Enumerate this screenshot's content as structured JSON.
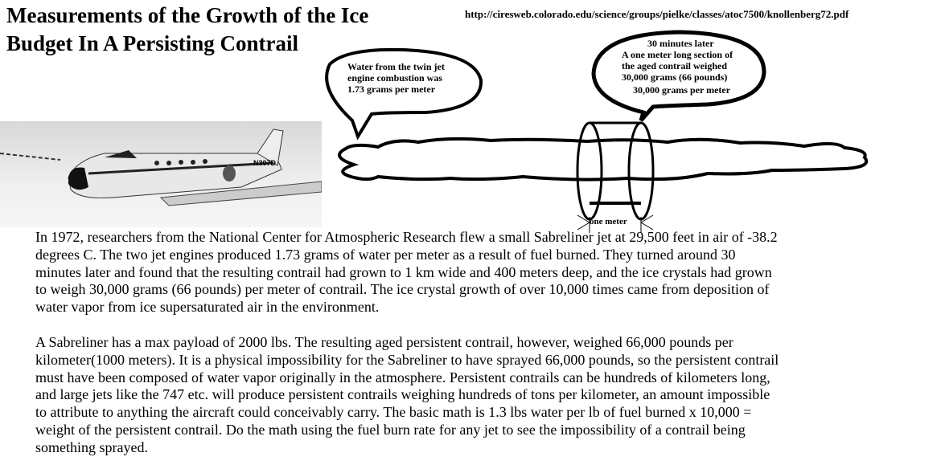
{
  "title": [
    "Measurements of the Growth of the Ice",
    "Budget In A Persisting Contrail"
  ],
  "url": "http://ciresweb.colorado.edu/science/groups/pielke/classes/atoc7500/knollenberg72.pdf",
  "bubble_left": [
    "Water from the twin jet",
    "engine combustion was",
    "1.73 grams per meter"
  ],
  "bubble_right": {
    "heading": "30 minutes later",
    "lines": [
      "A one meter long section of",
      "the aged contrail weighed",
      "30,000 grams (66 pounds)"
    ],
    "footer": "30,000 grams per meter"
  },
  "photo": {
    "tail_number": "N307D"
  },
  "dimension_label": "one meter",
  "paragraph1": [
    "In 1972, researchers from the National Center for Atmospheric Research flew a small Sabreliner jet at 29,500 feet in air of -38.2",
    "degrees C. The two jet engines produced 1.73 grams of water per meter as a result of fuel burned. They turned around 30",
    "minutes later and found that the resulting contrail had grown to 1 km wide and 400 meters deep, and the ice crystals had grown",
    "to weigh 30,000 grams (66 pounds) per meter of contrail. The ice crystal growth of over 10,000 times came from deposition of",
    "water vapor from ice supersaturated air in the environment."
  ],
  "paragraph2": [
    "A Sabreliner has a max payload of 2000 lbs. The resulting aged persistent contrail, however, weighed 66,000 pounds per",
    "kilometer(1000 meters). It is a physical impossibility for the Sabreliner to have sprayed 66,000 pounds, so the persistent contrail",
    "must have been composed of water vapor originally in the atmosphere. Persistent contrails can be hundreds of kilometers long,",
    "and large jets like the 747 etc. will produce persistent contrails weighing hundreds of tons per kilometer, an amount impossible",
    "to attribute to anything the aircraft could conceivably carry. The basic math is 1.3 lbs water per lb of fuel burned x 10,000 =",
    "weight of the persistent contrail. Do the math using the fuel burn rate for any jet to see the impossibility of a contrail being",
    "something sprayed."
  ]
}
